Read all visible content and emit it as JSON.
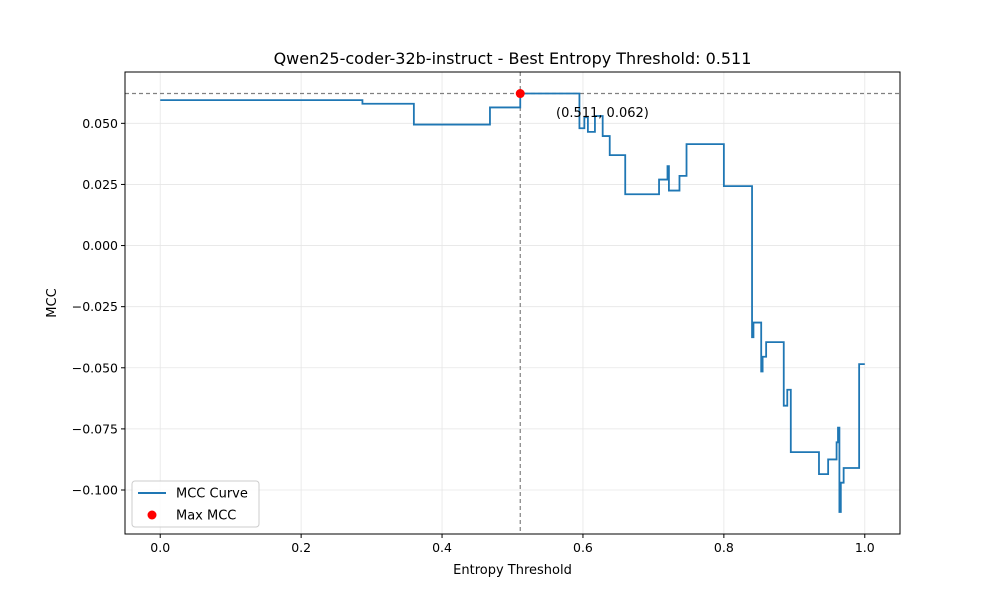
{
  "chart_data": {
    "type": "line",
    "title": "Qwen25-coder-32b-instruct - Best Entropy Threshold: 0.511",
    "xlabel": "Entropy Threshold",
    "ylabel": "MCC",
    "xlim": [
      -0.05,
      1.05
    ],
    "ylim": [
      -0.118,
      0.071
    ],
    "xticks": [
      0.0,
      0.2,
      0.4,
      0.6,
      0.8,
      1.0
    ],
    "xtick_labels": [
      "0.0",
      "0.2",
      "0.4",
      "0.6",
      "0.8",
      "1.0"
    ],
    "yticks": [
      0.05,
      0.025,
      0.0,
      -0.025,
      -0.05,
      -0.075,
      -0.1
    ],
    "ytick_labels": [
      "0.050",
      "0.025",
      "0.000",
      "−0.025",
      "−0.050",
      "−0.075",
      "−0.100"
    ],
    "grid": true,
    "legend_position": "lower-left",
    "series": [
      {
        "name": "MCC Curve",
        "color": "#1f77b4",
        "step": true,
        "x": [
          0.0,
          0.287,
          0.36,
          0.468,
          0.511,
          0.595,
          0.602,
          0.607,
          0.617,
          0.628,
          0.638,
          0.66,
          0.708,
          0.72,
          0.722,
          0.737,
          0.747,
          0.8,
          0.812,
          0.84,
          0.842,
          0.853,
          0.855,
          0.858,
          0.86,
          0.88,
          0.885,
          0.89,
          0.895,
          0.935,
          0.948,
          0.96,
          0.962,
          0.964,
          0.966,
          0.97,
          0.978,
          0.992,
          0.998,
          1.0
        ],
        "y": [
          0.0595,
          0.058,
          0.0495,
          0.0565,
          0.0622,
          0.048,
          0.0525,
          0.0465,
          0.053,
          0.0448,
          0.037,
          0.021,
          0.027,
          0.0325,
          0.0225,
          0.0285,
          0.0415,
          0.0243,
          0.0243,
          -0.0375,
          -0.0315,
          -0.0515,
          -0.0455,
          -0.0455,
          -0.0395,
          -0.0395,
          -0.0655,
          -0.059,
          -0.0845,
          -0.0935,
          -0.0875,
          -0.0805,
          -0.0745,
          -0.109,
          -0.097,
          -0.091,
          -0.091,
          -0.0485,
          -0.0485,
          -0.0485
        ]
      }
    ],
    "max_point": {
      "name": "Max MCC",
      "x": 0.511,
      "y": 0.0622,
      "color": "#ff0000",
      "label": "(0.511, 0.062)"
    },
    "reference_lines": {
      "color": "#808080",
      "vertical_x": 0.511,
      "horizontal_y": 0.0622
    }
  }
}
